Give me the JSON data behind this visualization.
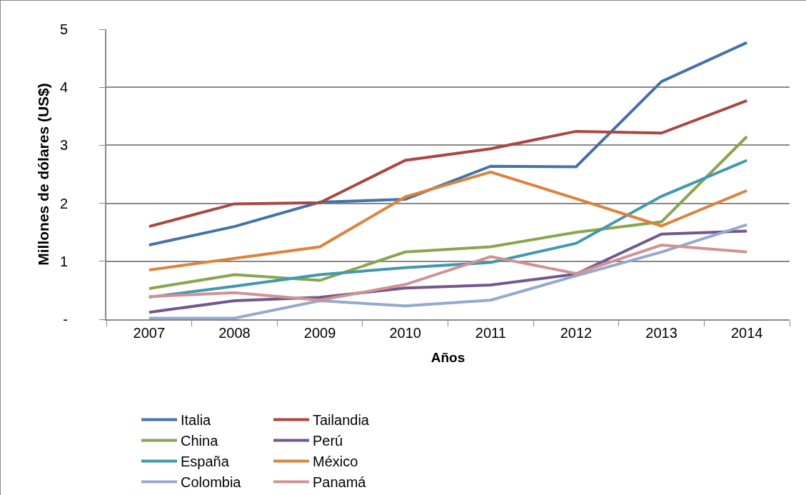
{
  "chart_data": {
    "type": "line",
    "xlabel": "Años",
    "ylabel": "Millones de dólares (US$)",
    "categories": [
      "2007",
      "2008",
      "2009",
      "2010",
      "2011",
      "2012",
      "2013",
      "2014"
    ],
    "series": [
      {
        "name": "Italia",
        "color": "#4572a7",
        "values": [
          1.28,
          1.6,
          2.02,
          2.07,
          2.64,
          2.63,
          4.1,
          4.77
        ]
      },
      {
        "name": "Tailandia",
        "color": "#aa4643",
        "values": [
          1.6,
          1.99,
          2.01,
          2.74,
          2.94,
          3.24,
          3.21,
          3.77
        ]
      },
      {
        "name": "China",
        "color": "#89a54e",
        "values": [
          0.53,
          0.77,
          0.67,
          1.16,
          1.25,
          1.5,
          1.68,
          3.15
        ]
      },
      {
        "name": "Perú",
        "color": "#71588f",
        "values": [
          0.12,
          0.32,
          0.38,
          0.54,
          0.59,
          0.78,
          1.47,
          1.52
        ]
      },
      {
        "name": "España",
        "color": "#4198af",
        "values": [
          0.38,
          0.57,
          0.77,
          0.89,
          0.98,
          1.31,
          2.12,
          2.74
        ]
      },
      {
        "name": "México",
        "color": "#db843d",
        "values": [
          0.85,
          1.05,
          1.25,
          2.11,
          2.54,
          2.08,
          1.61,
          2.22
        ]
      },
      {
        "name": "Colombia",
        "color": "#93a9cf",
        "values": [
          0.02,
          0.02,
          0.32,
          0.23,
          0.33,
          0.75,
          1.16,
          1.63
        ]
      },
      {
        "name": "Panamá",
        "color": "#d19392",
        "values": [
          0.39,
          0.46,
          0.33,
          0.6,
          1.08,
          0.79,
          1.28,
          1.16
        ]
      }
    ],
    "ylim": [
      0,
      5
    ],
    "yticks": [
      {
        "value": 0,
        "label": "-"
      },
      1,
      2,
      3,
      4,
      5
    ],
    "grid": "y",
    "legend": "bottom",
    "marker": "none",
    "line_style": "solid"
  }
}
